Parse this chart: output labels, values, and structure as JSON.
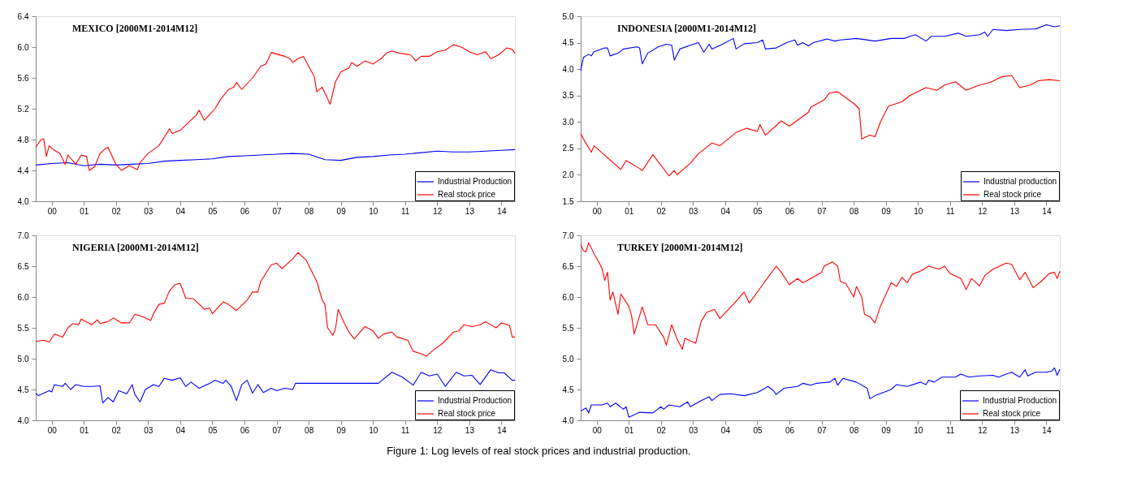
{
  "chart_data": [
    {
      "type": "line",
      "title": "MEXICO [2000M1-2014M12]",
      "legend": "bottom right",
      "xlim": [
        "2000-01",
        "2014-12"
      ],
      "xticks": [
        {
          "value": "2000-07",
          "label": "00"
        },
        {
          "value": "2001-07",
          "label": "01"
        },
        {
          "value": "2002-07",
          "label": "02"
        },
        {
          "value": "2003-07",
          "label": "03"
        },
        {
          "value": "2004-07",
          "label": "04"
        },
        {
          "value": "2005-07",
          "label": "05"
        },
        {
          "value": "2006-07",
          "label": "06"
        },
        {
          "value": "2007-07",
          "label": "07"
        },
        {
          "value": "2008-07",
          "label": "08"
        },
        {
          "value": "2009-07",
          "label": "09"
        },
        {
          "value": "2010-07",
          "label": "10"
        },
        {
          "value": "2011-07",
          "label": "11"
        },
        {
          "value": "2012-07",
          "label": "12"
        },
        {
          "value": "2013-07",
          "label": "13"
        },
        {
          "value": "2014-07",
          "label": "14"
        }
      ],
      "ylim": [
        4.0,
        6.4
      ],
      "yticks": [
        {
          "value": 4,
          "label": "4.0"
        },
        4.4,
        4.8,
        5.2,
        5.6,
        {
          "value": 6,
          "label": "6.0"
        },
        6.4
      ],
      "series": [
        {
          "name": "Industrial Production",
          "color": "#0000ff",
          "x": [
            "2000-01",
            "2000-07",
            "2001-01",
            "2001-07",
            "2002-01",
            "2002-07",
            "2003-01",
            "2003-07",
            "2004-01",
            "2004-07",
            "2005-01",
            "2005-07",
            "2006-01",
            "2006-07",
            "2007-01",
            "2007-07",
            "2008-01",
            "2008-07",
            "2009-01",
            "2009-07",
            "2010-01",
            "2010-07",
            "2011-01",
            "2011-07",
            "2012-01",
            "2012-07",
            "2013-01",
            "2013-07",
            "2014-01",
            "2014-07",
            "2014-12"
          ],
          "values": [
            4.47,
            4.49,
            4.5,
            4.46,
            4.48,
            4.47,
            4.48,
            4.49,
            4.52,
            4.53,
            4.54,
            4.55,
            4.58,
            4.59,
            4.6,
            4.61,
            4.62,
            4.61,
            4.54,
            4.53,
            4.57,
            4.58,
            4.6,
            4.61,
            4.63,
            4.65,
            4.64,
            4.64,
            4.65,
            4.66,
            4.67
          ]
        },
        {
          "name": "Real stock price",
          "color": "#ff0000",
          "x": [
            "2000-01",
            "2000-03",
            "2000-04",
            "2000-05",
            "2000-06",
            "2000-08",
            "2000-10",
            "2000-12",
            "2001-01",
            "2001-04",
            "2001-06",
            "2001-08",
            "2001-09",
            "2001-11",
            "2002-01",
            "2002-03",
            "2002-04",
            "2002-07",
            "2002-09",
            "2002-12",
            "2003-03",
            "2003-04",
            "2003-07",
            "2003-11",
            "2004-03",
            "2004-04",
            "2004-07",
            "2004-10",
            "2005-01",
            "2005-02",
            "2005-04",
            "2005-08",
            "2005-10",
            "2006-01",
            "2006-03",
            "2006-04",
            "2006-06",
            "2006-10",
            "2007-01",
            "2007-03",
            "2007-04",
            "2007-05",
            "2007-10",
            "2007-12",
            "2008-01",
            "2008-03",
            "2008-05",
            "2008-07",
            "2008-09",
            "2008-10",
            "2008-12",
            "2009-03",
            "2009-05",
            "2009-07",
            "2009-10",
            "2009-11",
            "2010-01",
            "2010-04",
            "2010-07",
            "2010-10",
            "2010-12",
            "2011-02",
            "2011-05",
            "2011-09",
            "2011-11",
            "2012-01",
            "2012-04",
            "2012-07",
            "2012-10",
            "2013-01",
            "2013-04",
            "2013-07",
            "2013-10",
            "2014-01",
            "2014-03",
            "2014-06",
            "2014-09",
            "2014-11",
            "2014-12"
          ],
          "values": [
            4.7,
            4.8,
            4.81,
            4.58,
            4.72,
            4.66,
            4.62,
            4.48,
            4.6,
            4.48,
            4.6,
            4.58,
            4.4,
            4.45,
            4.62,
            4.68,
            4.7,
            4.48,
            4.4,
            4.46,
            4.41,
            4.5,
            4.62,
            4.72,
            4.94,
            4.88,
            4.92,
            5.02,
            5.12,
            5.18,
            5.05,
            5.2,
            5.32,
            5.45,
            5.48,
            5.54,
            5.45,
            5.6,
            5.75,
            5.78,
            5.85,
            5.93,
            5.88,
            5.85,
            5.8,
            5.85,
            5.88,
            5.75,
            5.62,
            5.42,
            5.48,
            5.26,
            5.55,
            5.68,
            5.73,
            5.8,
            5.75,
            5.82,
            5.78,
            5.85,
            5.92,
            5.95,
            5.92,
            5.9,
            5.82,
            5.88,
            5.88,
            5.94,
            5.96,
            6.03,
            6.0,
            5.94,
            5.9,
            5.94,
            5.85,
            5.9,
            5.99,
            5.97,
            5.92
          ]
        }
      ]
    },
    {
      "type": "line",
      "title": "INDONESIA [2000M1-2014M12]",
      "legend": "bottom right",
      "xlim": [
        "2000-01",
        "2014-12"
      ],
      "xticks": [
        {
          "value": "2000-07",
          "label": "00"
        },
        {
          "value": "2001-07",
          "label": "01"
        },
        {
          "value": "2002-07",
          "label": "02"
        },
        {
          "value": "2003-07",
          "label": "03"
        },
        {
          "value": "2004-07",
          "label": "04"
        },
        {
          "value": "2005-07",
          "label": "05"
        },
        {
          "value": "2006-07",
          "label": "06"
        },
        {
          "value": "2007-07",
          "label": "07"
        },
        {
          "value": "2008-07",
          "label": "08"
        },
        {
          "value": "2009-07",
          "label": "09"
        },
        {
          "value": "2010-07",
          "label": "10"
        },
        {
          "value": "2011-07",
          "label": "11"
        },
        {
          "value": "2012-07",
          "label": "12"
        },
        {
          "value": "2013-07",
          "label": "13"
        },
        {
          "value": "2014-07",
          "label": "14"
        }
      ],
      "ylim": [
        1.5,
        5.0
      ],
      "yticks": [
        1.5,
        {
          "value": 2,
          "label": "2.0"
        },
        2.5,
        {
          "value": 3,
          "label": "3.0"
        },
        3.5,
        {
          "value": 4,
          "label": "4.0"
        },
        4.5,
        {
          "value": 5,
          "label": "5.0"
        }
      ],
      "series": [
        {
          "name": "Industrial production",
          "color": "#0000ff",
          "x": [
            "2000-01",
            "2000-02",
            "2000-04",
            "2000-05",
            "2000-06",
            "2000-10",
            "2000-11",
            "2000-12",
            "2001-03",
            "2001-05",
            "2001-10",
            "2001-11",
            "2001-12",
            "2002-02",
            "2002-06",
            "2002-09",
            "2002-11",
            "2002-12",
            "2003-02",
            "2003-06",
            "2003-09",
            "2003-11",
            "2004-01",
            "2004-02",
            "2004-06",
            "2004-10",
            "2004-11",
            "2005-02",
            "2005-07",
            "2005-09",
            "2005-10",
            "2006-02",
            "2006-06",
            "2006-09",
            "2006-10",
            "2006-12",
            "2007-02",
            "2007-04",
            "2007-09",
            "2007-12",
            "2008-02",
            "2008-08",
            "2009-03",
            "2009-09",
            "2010-02",
            "2010-04",
            "2010-06",
            "2010-10",
            "2010-12",
            "2011-05",
            "2011-10",
            "2012-01",
            "2012-06",
            "2012-08",
            "2012-09",
            "2012-11",
            "2013-04",
            "2013-09",
            "2014-03",
            "2014-07",
            "2014-10",
            "2014-12"
          ],
          "values": [
            3.97,
            4.22,
            4.28,
            4.25,
            4.33,
            4.4,
            4.4,
            4.25,
            4.3,
            4.38,
            4.42,
            4.4,
            4.1,
            4.3,
            4.42,
            4.47,
            4.45,
            4.17,
            4.38,
            4.45,
            4.5,
            4.32,
            4.47,
            4.38,
            4.47,
            4.58,
            4.38,
            4.48,
            4.5,
            4.55,
            4.38,
            4.4,
            4.5,
            4.55,
            4.45,
            4.5,
            4.44,
            4.5,
            4.57,
            4.53,
            4.55,
            4.58,
            4.53,
            4.58,
            4.58,
            4.62,
            4.65,
            4.53,
            4.62,
            4.62,
            4.68,
            4.62,
            4.65,
            4.7,
            4.62,
            4.75,
            4.73,
            4.75,
            4.76,
            4.84,
            4.8,
            4.82
          ]
        },
        {
          "name": "Real stock price",
          "color": "#ff0000",
          "x": [
            "2000-01",
            "2000-02",
            "2000-05",
            "2000-06",
            "2001-04",
            "2001-06",
            "2001-11",
            "2001-12",
            "2002-04",
            "2002-10",
            "2002-12",
            "2003-01",
            "2003-06",
            "2003-09",
            "2004-02",
            "2004-05",
            "2004-11",
            "2005-03",
            "2005-07",
            "2005-08",
            "2005-10",
            "2006-04",
            "2006-07",
            "2007-02",
            "2007-03",
            "2007-08",
            "2007-10",
            "2008-01",
            "2008-03",
            "2008-07",
            "2008-09",
            "2008-10",
            "2009-01",
            "2009-03",
            "2009-05",
            "2009-08",
            "2010-01",
            "2010-04",
            "2010-10",
            "2011-02",
            "2011-05",
            "2011-09",
            "2012-01",
            "2012-06",
            "2012-10",
            "2013-02",
            "2013-06",
            "2013-09",
            "2014-01",
            "2014-04",
            "2014-08",
            "2014-12"
          ],
          "values": [
            2.78,
            2.68,
            2.43,
            2.55,
            2.1,
            2.27,
            2.12,
            2.08,
            2.38,
            1.98,
            2.08,
            2.0,
            2.22,
            2.4,
            2.6,
            2.55,
            2.8,
            2.88,
            2.82,
            2.95,
            2.75,
            3.02,
            2.92,
            3.18,
            3.28,
            3.42,
            3.55,
            3.57,
            3.5,
            3.35,
            3.25,
            2.68,
            2.75,
            2.72,
            3.0,
            3.3,
            3.38,
            3.5,
            3.65,
            3.6,
            3.7,
            3.76,
            3.6,
            3.7,
            3.75,
            3.85,
            3.88,
            3.65,
            3.7,
            3.78,
            3.8,
            3.78
          ]
        }
      ]
    },
    {
      "type": "line",
      "title": "NIGERIA [2000M1-2014M12]",
      "legend": "bottom right",
      "xlim": [
        "2000-01",
        "2014-12"
      ],
      "xticks": [
        {
          "value": "2000-07",
          "label": "00"
        },
        {
          "value": "2001-07",
          "label": "01"
        },
        {
          "value": "2002-07",
          "label": "02"
        },
        {
          "value": "2003-07",
          "label": "03"
        },
        {
          "value": "2004-07",
          "label": "04"
        },
        {
          "value": "2005-07",
          "label": "05"
        },
        {
          "value": "2006-07",
          "label": "06"
        },
        {
          "value": "2007-07",
          "label": "07"
        },
        {
          "value": "2008-07",
          "label": "08"
        },
        {
          "value": "2009-07",
          "label": "09"
        },
        {
          "value": "2010-07",
          "label": "10"
        },
        {
          "value": "2011-07",
          "label": "11"
        },
        {
          "value": "2012-07",
          "label": "12"
        },
        {
          "value": "2013-07",
          "label": "13"
        },
        {
          "value": "2014-07",
          "label": "14"
        }
      ],
      "ylim": [
        4.0,
        7.0
      ],
      "yticks": [
        {
          "value": 4,
          "label": "4.0"
        },
        4.5,
        {
          "value": 5,
          "label": "5.0"
        },
        5.5,
        {
          "value": 6,
          "label": "6.0"
        },
        6.5,
        {
          "value": 7,
          "label": "7.0"
        }
      ],
      "series": [
        {
          "name": "Industrial Production",
          "color": "#0000ff",
          "x": [
            "2000-01",
            "2000-02",
            "2000-04",
            "2000-06",
            "2000-07",
            "2000-08",
            "2000-11",
            "2000-12",
            "2001-02",
            "2001-04",
            "2001-07",
            "2001-10",
            "2002-01",
            "2002-02",
            "2002-04",
            "2002-06",
            "2002-08",
            "2002-11",
            "2003-01",
            "2003-02",
            "2003-04",
            "2003-06",
            "2003-09",
            "2003-11",
            "2004-01",
            "2004-04",
            "2004-07",
            "2004-09",
            "2004-11",
            "2005-02",
            "2005-06",
            "2005-08",
            "2005-11",
            "2005-12",
            "2006-02",
            "2006-04",
            "2006-06",
            "2006-08",
            "2006-10",
            "2006-12",
            "2007-02",
            "2007-05",
            "2007-07",
            "2007-10",
            "2008-01",
            "2008-02",
            "2009-01",
            "2010-09",
            "2011-02",
            "2011-06",
            "2011-10",
            "2012-01",
            "2012-04",
            "2012-07",
            "2012-10",
            "2013-02",
            "2013-05",
            "2013-08",
            "2013-11",
            "2014-03",
            "2014-06",
            "2014-08",
            "2014-11",
            "2014-12"
          ],
          "values": [
            4.44,
            4.4,
            4.44,
            4.48,
            4.46,
            4.58,
            4.55,
            4.6,
            4.5,
            4.58,
            4.55,
            4.55,
            4.56,
            4.28,
            4.37,
            4.3,
            4.48,
            4.43,
            4.58,
            4.42,
            4.3,
            4.5,
            4.58,
            4.55,
            4.68,
            4.65,
            4.69,
            4.55,
            4.62,
            4.52,
            4.6,
            4.65,
            4.6,
            4.65,
            4.55,
            4.32,
            4.58,
            4.65,
            4.44,
            4.58,
            4.45,
            4.52,
            4.48,
            4.52,
            4.5,
            4.6,
            4.6,
            4.6,
            4.78,
            4.7,
            4.57,
            4.78,
            4.72,
            4.75,
            4.55,
            4.78,
            4.72,
            4.73,
            4.58,
            4.82,
            4.77,
            4.77,
            4.65,
            4.65
          ]
        },
        {
          "name": "Real stock price",
          "color": "#ff0000",
          "x": [
            "2000-01",
            "2000-04",
            "2000-06",
            "2000-08",
            "2000-11",
            "2001-01",
            "2001-03",
            "2001-05",
            "2001-06",
            "2001-10",
            "2001-12",
            "2002-01",
            "2002-04",
            "2002-06",
            "2002-09",
            "2002-12",
            "2003-02",
            "2003-05",
            "2003-08",
            "2003-09",
            "2003-11",
            "2004-01",
            "2004-03",
            "2004-05",
            "2004-07",
            "2004-09",
            "2004-12",
            "2005-04",
            "2005-06",
            "2005-07",
            "2005-11",
            "2006-01",
            "2006-04",
            "2006-08",
            "2006-10",
            "2006-12",
            "2007-01",
            "2007-05",
            "2007-07",
            "2007-09",
            "2008-01",
            "2008-03",
            "2008-06",
            "2008-10",
            "2008-12",
            "2009-01",
            "2009-02",
            "2009-04",
            "2009-05",
            "2009-06",
            "2009-08",
            "2009-10",
            "2009-12",
            "2010-04",
            "2010-07",
            "2010-09",
            "2010-11",
            "2011-02",
            "2011-04",
            "2011-08",
            "2011-10",
            "2012-01",
            "2012-03",
            "2012-05",
            "2012-09",
            "2013-01",
            "2013-03",
            "2013-05",
            "2013-08",
            "2013-11",
            "2014-01",
            "2014-05",
            "2014-07",
            "2014-10",
            "2014-11",
            "2014-12"
          ],
          "values": [
            5.28,
            5.3,
            5.27,
            5.4,
            5.35,
            5.5,
            5.57,
            5.55,
            5.64,
            5.55,
            5.63,
            5.57,
            5.6,
            5.66,
            5.58,
            5.58,
            5.72,
            5.68,
            5.62,
            5.73,
            5.88,
            5.9,
            6.1,
            6.2,
            6.22,
            5.98,
            5.97,
            5.8,
            5.82,
            5.73,
            5.92,
            5.88,
            5.78,
            5.95,
            6.08,
            6.08,
            6.25,
            6.52,
            6.55,
            6.46,
            6.62,
            6.72,
            6.6,
            6.25,
            5.95,
            5.88,
            5.5,
            5.38,
            5.48,
            5.8,
            5.6,
            5.43,
            5.32,
            5.52,
            5.45,
            5.33,
            5.4,
            5.43,
            5.35,
            5.3,
            5.12,
            5.08,
            5.04,
            5.12,
            5.25,
            5.43,
            5.45,
            5.55,
            5.52,
            5.55,
            5.6,
            5.5,
            5.58,
            5.54,
            5.35,
            5.35
          ]
        }
      ]
    },
    {
      "type": "line",
      "title": "TURKEY [2000M1-2014M12]",
      "legend": "bottom right",
      "annotations": [
        "Figure 1: Log levels of real stock prices and industrial production."
      ],
      "xlim": [
        "2000-01",
        "2014-12"
      ],
      "xticks": [
        {
          "value": "2000-07",
          "label": "00"
        },
        {
          "value": "2001-07",
          "label": "01"
        },
        {
          "value": "2002-07",
          "label": "02"
        },
        {
          "value": "2003-07",
          "label": "03"
        },
        {
          "value": "2004-07",
          "label": "04"
        },
        {
          "value": "2005-07",
          "label": "05"
        },
        {
          "value": "2006-07",
          "label": "06"
        },
        {
          "value": "2007-07",
          "label": "07"
        },
        {
          "value": "2008-07",
          "label": "08"
        },
        {
          "value": "2009-07",
          "label": "09"
        },
        {
          "value": "2010-07",
          "label": "10"
        },
        {
          "value": "2011-07",
          "label": "11"
        },
        {
          "value": "2012-07",
          "label": "12"
        },
        {
          "value": "2013-07",
          "label": "13"
        },
        {
          "value": "2014-07",
          "label": "14"
        }
      ],
      "ylim": [
        4.0,
        7.0
      ],
      "yticks": [
        {
          "value": 4,
          "label": "4.0"
        },
        4.5,
        {
          "value": 5,
          "label": "5.0"
        },
        5.5,
        {
          "value": 6,
          "label": "6.0"
        },
        6.5,
        {
          "value": 7,
          "label": "7.0"
        }
      ],
      "series": [
        {
          "name": "Industrial Production",
          "color": "#0000ff",
          "x": [
            "2000-01",
            "2000-03",
            "2000-04",
            "2000-05",
            "2000-09",
            "2000-11",
            "2000-12",
            "2001-02",
            "2001-05",
            "2001-06",
            "2001-07",
            "2001-11",
            "2002-04",
            "2002-07",
            "2002-08",
            "2002-10",
            "2003-02",
            "2003-05",
            "2003-06",
            "2003-10",
            "2004-01",
            "2004-02",
            "2004-05",
            "2004-09",
            "2005-02",
            "2005-07",
            "2005-11",
            "2006-01",
            "2006-02",
            "2006-05",
            "2006-10",
            "2006-12",
            "2007-03",
            "2007-05",
            "2007-10",
            "2007-12",
            "2008-01",
            "2008-03",
            "2008-08",
            "2008-12",
            "2009-01",
            "2009-03",
            "2009-06",
            "2009-09",
            "2009-11",
            "2010-03",
            "2010-08",
            "2010-10",
            "2010-11",
            "2011-01",
            "2011-04",
            "2011-09",
            "2011-11",
            "2012-02",
            "2012-06",
            "2012-11",
            "2013-01",
            "2013-04",
            "2013-06",
            "2013-09",
            "2013-11",
            "2013-12",
            "2014-03",
            "2014-07",
            "2014-09",
            "2014-10",
            "2014-11",
            "2014-12"
          ],
          "values": [
            4.15,
            4.2,
            4.12,
            4.25,
            4.25,
            4.28,
            4.22,
            4.28,
            4.18,
            4.22,
            4.05,
            4.13,
            4.12,
            4.22,
            4.18,
            4.25,
            4.22,
            4.3,
            4.22,
            4.32,
            4.38,
            4.32,
            4.42,
            4.43,
            4.4,
            4.45,
            4.55,
            4.48,
            4.42,
            4.52,
            4.55,
            4.6,
            4.57,
            4.6,
            4.62,
            4.68,
            4.57,
            4.68,
            4.62,
            4.52,
            4.35,
            4.4,
            4.45,
            4.5,
            4.58,
            4.55,
            4.62,
            4.58,
            4.65,
            4.62,
            4.7,
            4.7,
            4.75,
            4.7,
            4.72,
            4.73,
            4.7,
            4.75,
            4.78,
            4.7,
            4.82,
            4.72,
            4.78,
            4.78,
            4.8,
            4.85,
            4.73,
            4.83
          ]
        },
        {
          "name": "Real stock price",
          "color": "#ff0000",
          "x": [
            "2000-01",
            "2000-02",
            "2000-03",
            "2000-04",
            "2000-06",
            "2000-08",
            "2000-09",
            "2000-10",
            "2000-11",
            "2000-12",
            "2001-01",
            "2001-03",
            "2001-04",
            "2001-07",
            "2001-08",
            "2001-09",
            "2001-12",
            "2002-02",
            "2002-05",
            "2002-08",
            "2002-09",
            "2002-11",
            "2003-01",
            "2003-03",
            "2003-04",
            "2003-08",
            "2003-10",
            "2003-12",
            "2004-03",
            "2004-05",
            "2004-10",
            "2005-02",
            "2005-04",
            "2005-09",
            "2005-11",
            "2006-02",
            "2006-04",
            "2006-07",
            "2006-10",
            "2006-12",
            "2007-03",
            "2007-07",
            "2007-08",
            "2007-11",
            "2008-01",
            "2008-02",
            "2008-04",
            "2008-07",
            "2008-08",
            "2008-10",
            "2008-11",
            "2009-01",
            "2009-03",
            "2009-05",
            "2009-09",
            "2009-11",
            "2010-01",
            "2010-03",
            "2010-05",
            "2010-08",
            "2010-11",
            "2011-03",
            "2011-05",
            "2011-07",
            "2011-11",
            "2012-01",
            "2012-03",
            "2012-06",
            "2012-08",
            "2012-11",
            "2013-04",
            "2013-06",
            "2013-09",
            "2013-11",
            "2014-02",
            "2014-05",
            "2014-08",
            "2014-10",
            "2014-11",
            "2014-12"
          ],
          "values": [
            6.85,
            6.75,
            6.73,
            6.88,
            6.7,
            6.55,
            6.45,
            6.27,
            6.4,
            5.95,
            6.08,
            5.72,
            6.05,
            5.85,
            5.7,
            5.4,
            5.84,
            5.55,
            5.55,
            5.35,
            5.22,
            5.55,
            5.32,
            5.15,
            5.33,
            5.25,
            5.6,
            5.75,
            5.8,
            5.65,
            5.88,
            6.08,
            5.9,
            6.2,
            6.32,
            6.5,
            6.4,
            6.2,
            6.3,
            6.23,
            6.3,
            6.4,
            6.5,
            6.57,
            6.5,
            6.25,
            6.22,
            6.0,
            6.17,
            6.0,
            5.72,
            5.68,
            5.58,
            5.85,
            6.23,
            6.17,
            6.32,
            6.23,
            6.37,
            6.42,
            6.5,
            6.45,
            6.5,
            6.38,
            6.3,
            6.12,
            6.3,
            6.18,
            6.35,
            6.45,
            6.55,
            6.53,
            6.28,
            6.4,
            6.15,
            6.25,
            6.38,
            6.4,
            6.3,
            6.42
          ]
        }
      ]
    }
  ]
}
